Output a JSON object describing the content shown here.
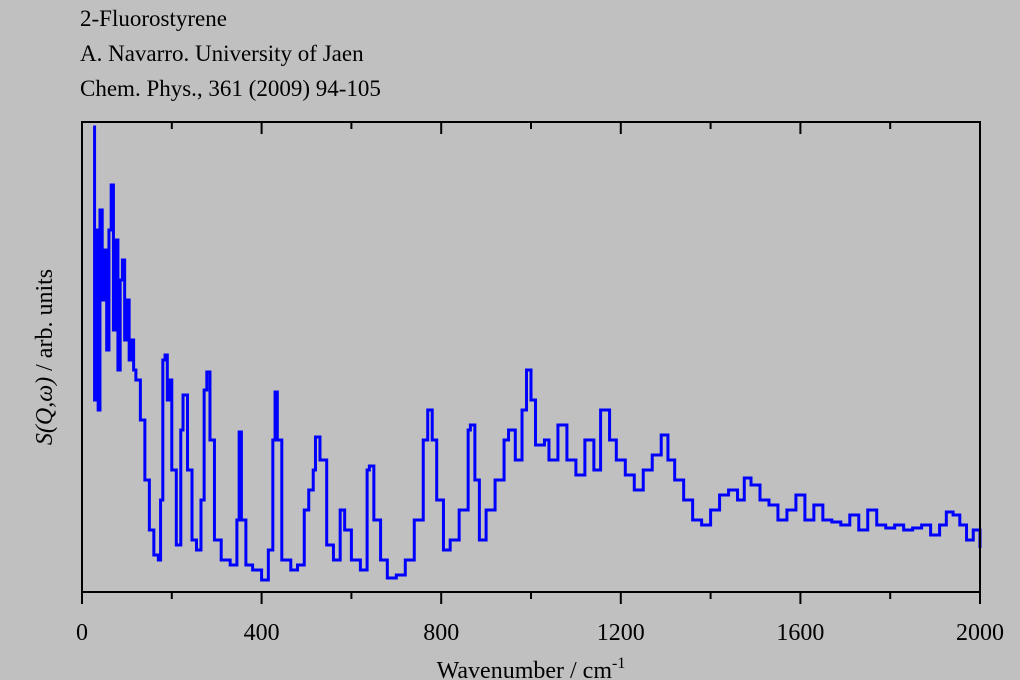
{
  "chart_data": {
    "type": "line",
    "step": true,
    "titles": [
      "2-Fluorostyrene",
      "A. Navarro. University of Jaen",
      "Chem. Phys., 361 (2009) 94-105"
    ],
    "xlabel": "Wavenumber / cm",
    "xlabel_sup": "-1",
    "ylabel_italic": "S(Q,ω)",
    "ylabel": " / arb. units",
    "xlim": [
      0,
      2000
    ],
    "xticks": [
      0,
      400,
      800,
      1200,
      1600,
      2000
    ],
    "xminorticks": [
      200,
      600,
      1000,
      1400,
      1800
    ],
    "ylim": [
      0,
      470
    ],
    "series": [
      {
        "color": "#0000ff",
        "x": [
          25,
          28,
          32,
          36,
          40,
          45,
          50,
          55,
          60,
          65,
          70,
          75,
          80,
          85,
          90,
          95,
          100,
          105,
          110,
          115,
          120,
          130,
          140,
          150,
          160,
          170,
          175,
          180,
          185,
          190,
          195,
          200,
          210,
          220,
          225,
          235,
          245,
          255,
          265,
          272,
          278,
          285,
          295,
          310,
          330,
          345,
          350,
          355,
          365,
          380,
          400,
          415,
          425,
          430,
          435,
          445,
          465,
          480,
          495,
          505,
          515,
          520,
          530,
          545,
          560,
          575,
          585,
          600,
          620,
          635,
          640,
          650,
          665,
          680,
          700,
          720,
          740,
          760,
          770,
          780,
          790,
          805,
          820,
          840,
          860,
          865,
          875,
          885,
          900,
          920,
          940,
          950,
          965,
          980,
          990,
          1000,
          1010,
          1030,
          1040,
          1060,
          1080,
          1100,
          1120,
          1140,
          1155,
          1165,
          1175,
          1190,
          1210,
          1230,
          1250,
          1270,
          1290,
          1305,
          1320,
          1340,
          1360,
          1380,
          1400,
          1420,
          1440,
          1460,
          1475,
          1490,
          1510,
          1530,
          1550,
          1570,
          1590,
          1610,
          1630,
          1650,
          1670,
          1690,
          1710,
          1730,
          1750,
          1770,
          1790,
          1810,
          1830,
          1850,
          1870,
          1890,
          1910,
          1925,
          1940,
          1955,
          1970,
          1985,
          2000
        ],
        "values": [
          465,
          192,
          362,
          182,
          382,
          292,
          342,
          242,
          362,
          407,
          262,
          352,
          222,
          312,
          332,
          252,
          292,
          232,
          252,
          222,
          212,
          172,
          112,
          62,
          37,
          32,
          92,
          232,
          237,
          192,
          212,
          122,
          47,
          162,
          197,
          122,
          52,
          42,
          92,
          202,
          220,
          152,
          52,
          32,
          27,
          72,
          160,
          72,
          27,
          22,
          12,
          42,
          152,
          200,
          152,
          32,
          22,
          27,
          82,
          102,
          122,
          155,
          132,
          47,
          32,
          82,
          62,
          32,
          22,
          122,
          126,
          72,
          32,
          14,
          17,
          32,
          72,
          152,
          182,
          152,
          92,
          42,
          52,
          82,
          162,
          167,
          112,
          52,
          82,
          112,
          152,
          162,
          132,
          182,
          222,
          192,
          147,
          152,
          132,
          167,
          132,
          117,
          152,
          122,
          182,
          182,
          152,
          132,
          117,
          102,
          122,
          137,
          157,
          132,
          112,
          92,
          72,
          67,
          82,
          97,
          102,
          92,
          114,
          107,
          92,
          87,
          72,
          82,
          97,
          72,
          87,
          72,
          70,
          67,
          77,
          62,
          82,
          67,
          64,
          67,
          62,
          64,
          67,
          57,
          67,
          80,
          77,
          67,
          52,
          62,
          44
        ]
      }
    ]
  }
}
